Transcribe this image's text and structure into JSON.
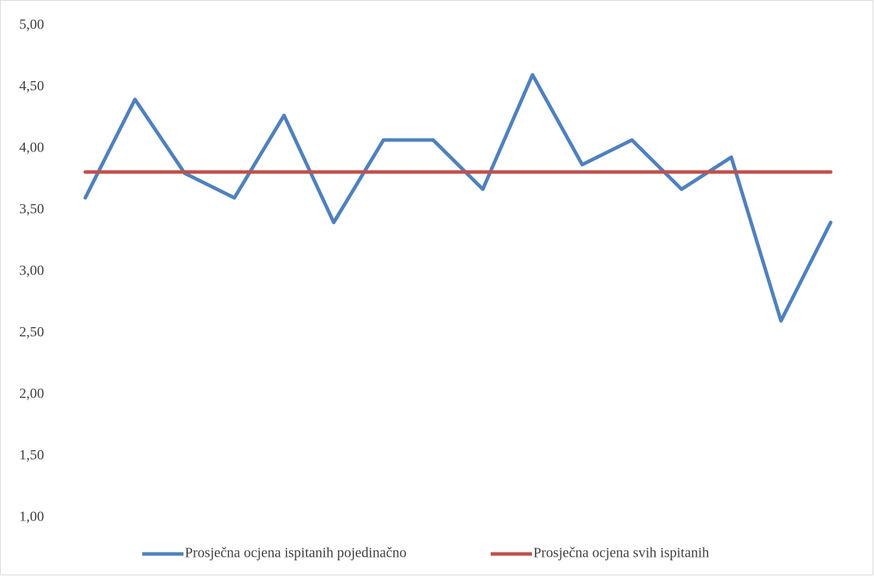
{
  "chart_data": {
    "type": "line",
    "categories": [
      null,
      null,
      null,
      null,
      null,
      null,
      null,
      null,
      null,
      null,
      null,
      null,
      null,
      null,
      null,
      null
    ],
    "series": [
      {
        "name": "Prosječna ocjena ispitanih pojedinačno",
        "color": "#4f81bd",
        "values": [
          3.6,
          4.4,
          3.8,
          3.6,
          4.27,
          3.4,
          4.07,
          4.07,
          3.67,
          4.6,
          3.87,
          4.07,
          3.67,
          3.93,
          2.6,
          3.4
        ]
      },
      {
        "name": "Prosječna ocjena svih ispitanih",
        "color": "#c0504d",
        "values": [
          3.81,
          3.81,
          3.81,
          3.81,
          3.81,
          3.81,
          3.81,
          3.81,
          3.81,
          3.81,
          3.81,
          3.81,
          3.81,
          3.81,
          3.81,
          3.81
        ]
      }
    ],
    "ylim": [
      1,
      5
    ],
    "yticks": [
      {
        "value": 1,
        "label": "1,00"
      },
      {
        "value": 1.5,
        "label": "1,50"
      },
      {
        "value": 2,
        "label": "2,00"
      },
      {
        "value": 2.5,
        "label": "2,50"
      },
      {
        "value": 3,
        "label": "3,00"
      },
      {
        "value": 3.5,
        "label": "3,50"
      },
      {
        "value": 4,
        "label": "4,00"
      },
      {
        "value": 4.5,
        "label": "4,50"
      },
      {
        "value": 5,
        "label": "5,00"
      }
    ],
    "grid": false,
    "legend": "bottom"
  }
}
